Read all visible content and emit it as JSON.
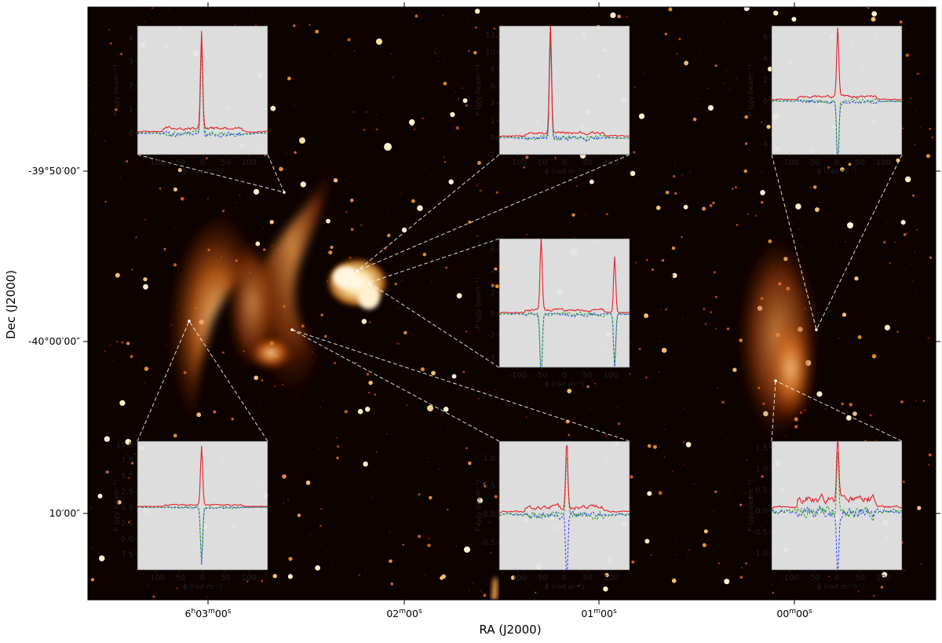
{
  "chart_data": {
    "type": "line",
    "main": {
      "xlabel": "RA (J2000)",
      "ylabel": "Dec (J2000)",
      "x_ticks": [
        {
          "h": "6",
          "m": "03",
          "s": "00",
          "label_kind": "full"
        },
        {
          "m": "02",
          "s": "00",
          "label_kind": "min"
        },
        {
          "m": "01",
          "s": "00",
          "label_kind": "min"
        },
        {
          "m": "00",
          "s": "00",
          "label_kind": "min"
        }
      ],
      "y_ticks": [
        "-39°50′00″",
        "-40°00′00″",
        "10′00″"
      ],
      "colormap": "afmhot",
      "background": "#0c0200"
    },
    "insets": [
      {
        "id": "top-left",
        "xlabel": "ϕ (rad m⁻²)",
        "ylabel": "P (μJy beam⁻¹)",
        "xlim": [
          -140,
          140
        ],
        "ylim": [
          -0.9,
          4.5
        ],
        "xticks": [
          -100,
          -50,
          0,
          50,
          100
        ],
        "yticks": [
          0,
          1,
          2,
          3,
          4
        ],
        "peaks": [
          {
            "phi": -2,
            "amp": 4.1,
            "sign_q": 1,
            "sign_u": 1
          }
        ],
        "noise": 0.25,
        "pointer_target": "north-west relic arm"
      },
      {
        "id": "top-center",
        "xlabel": "ϕ (rad m⁻²)",
        "ylabel": "P (μJy beam⁻¹)",
        "xlim": [
          -140,
          140
        ],
        "ylim": [
          -2,
          13
        ],
        "xticks": [
          -100,
          -50,
          0,
          50,
          100
        ],
        "yticks": [
          -2,
          0,
          2,
          4,
          6,
          8,
          10,
          12
        ],
        "peaks": [
          {
            "phi": -30,
            "amp": 12.9,
            "sign_q": 1,
            "sign_u": 1
          }
        ],
        "noise": 0.7,
        "pointer_target": "central compact source"
      },
      {
        "id": "top-right",
        "xlabel": "ϕ (rad m⁻²)",
        "ylabel": "P (μJy beam⁻¹)",
        "xlim": [
          -140,
          140
        ],
        "ylim": [
          -5,
          7
        ],
        "xticks": [
          -100,
          -50,
          0,
          50,
          100
        ],
        "yticks": [
          -4,
          -2,
          0,
          2,
          4,
          6
        ],
        "peaks": [
          {
            "phi": 2,
            "amp": 6.5,
            "sign_q": -1,
            "sign_u": -1
          }
        ],
        "noise": 0.5,
        "pointer_target": "eastern relic"
      },
      {
        "id": "middle-center",
        "xlabel": "ϕ (rad m⁻²)",
        "ylabel": "P (μJy beam⁻¹)",
        "xlim": [
          -140,
          140
        ],
        "ylim": [
          -5,
          7
        ],
        "xticks": [
          -100,
          -50,
          0,
          50,
          100
        ],
        "yticks": [
          -4,
          -2,
          0,
          2,
          4,
          6
        ],
        "peaks": [
          {
            "phi": -50,
            "amp": 6.8,
            "sign_q": -1,
            "sign_u": -1
          },
          {
            "phi": 108,
            "amp": 5.2,
            "sign_q": -1,
            "sign_u": -1
          }
        ],
        "noise": 0.45,
        "pointer_target": "central compact source"
      },
      {
        "id": "bottom-left",
        "xlabel": "ϕ (rad m⁻²)",
        "ylabel": "P (μJy beam⁻¹)",
        "xlim": [
          -140,
          140
        ],
        "ylim": [
          -10,
          10.5
        ],
        "xticks": [
          -100,
          -50,
          0,
          50,
          100
        ],
        "yticks": [
          -7.5,
          -5.0,
          -2.5,
          0.0,
          2.5,
          5.0,
          7.5,
          10.0
        ],
        "peaks": [
          {
            "phi": -2,
            "amp": 9.3,
            "sign_q": -1,
            "sign_u": -1
          }
        ],
        "noise": 0.45,
        "pointer_target": "western relic"
      },
      {
        "id": "bottom-center",
        "xlabel": "ϕ (rad m⁻²)",
        "ylabel": "P (μJy beam⁻¹)",
        "xlim": [
          -140,
          140
        ],
        "ylim": [
          -1.0,
          1.3
        ],
        "xticks": [
          -100,
          -50,
          0,
          50,
          100
        ],
        "yticks": [
          -0.5,
          0.0,
          0.5,
          1.0
        ],
        "peaks": [
          {
            "phi": 5,
            "amp": 1.2,
            "sign_q": 1,
            "sign_u": -1
          }
        ],
        "noise": 0.16,
        "pointer_target": "southern filament"
      },
      {
        "id": "bottom-right",
        "xlabel": "ϕ (rad m⁻²)",
        "ylabel": "P (μJy beam⁻¹)",
        "xlim": [
          -140,
          140
        ],
        "ylim": [
          -1.4,
          1.65
        ],
        "xticks": [
          -100,
          -50,
          0,
          50,
          100
        ],
        "yticks": [
          -1.0,
          -0.5,
          0.0,
          0.5,
          1.0,
          1.5
        ],
        "peaks": [
          {
            "phi": 2,
            "amp": 1.5,
            "sign_q": 1,
            "sign_u": -1
          }
        ],
        "noise": 0.35,
        "pointer_target": "eastern relic south"
      }
    ],
    "series": [
      {
        "name": "P",
        "color": "#e8202a",
        "style": "solid"
      },
      {
        "name": "Q",
        "color": "#2aa02a",
        "style": "dashed"
      },
      {
        "name": "U",
        "color": "#2040ff",
        "style": "dashed"
      }
    ]
  }
}
